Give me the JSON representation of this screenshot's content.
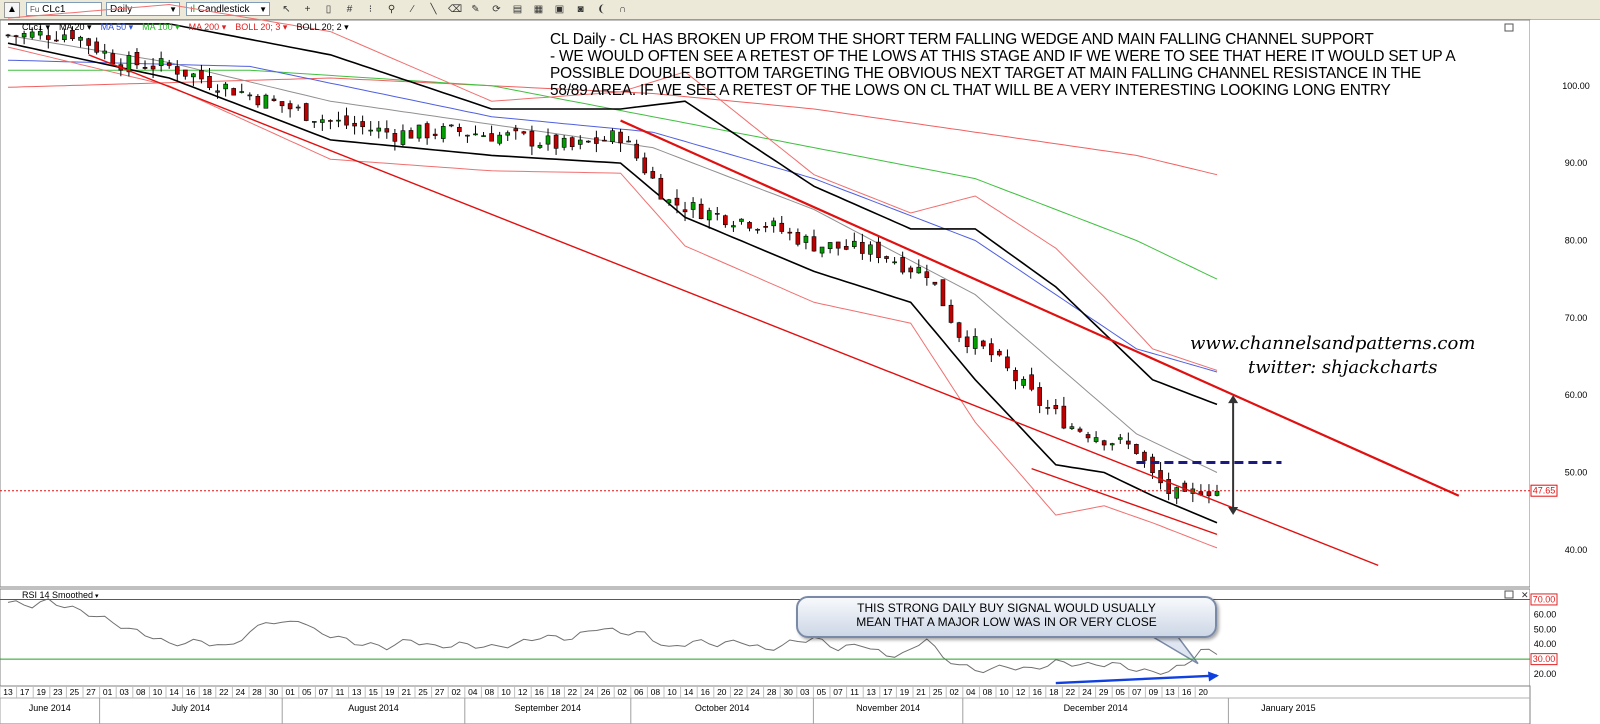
{
  "toolbar": {
    "symbol": "CLc1",
    "symbol_badge": "Fu",
    "interval": "Daily",
    "chart_type": "Candlestick",
    "icons": [
      "cursor-icon",
      "crosshair-icon",
      "data-window-icon",
      "grid-icon",
      "one-to-one-icon",
      "zoom-icon",
      "fibonacci-icon",
      "trendline-icon",
      "eraser-icon",
      "paint-icon",
      "refresh-icon",
      "layout-icon",
      "template-icon",
      "camera-icon",
      "highlight-icon",
      "wave-icon",
      "magnet-icon"
    ]
  },
  "legend": {
    "main": [
      {
        "label": "CLc1",
        "color": "#000000"
      },
      {
        "label": "MA 20",
        "color": "#000000"
      },
      {
        "label": "MA 50",
        "color": "#3050e0"
      },
      {
        "label": "MA 100",
        "color": "#22b822"
      },
      {
        "label": "MA 200",
        "color": "#e02020"
      },
      {
        "label": "BOLL 20; 3",
        "color": "#e02020"
      },
      {
        "label": "BOLL 20; 2",
        "color": "#000000"
      }
    ],
    "rsi": "RSI 14 Smoothed"
  },
  "annotation": {
    "lines": [
      "CL Daily - CL HAS BROKEN UP FROM THE SHORT TERM FALLING WEDGE AND MAIN FALLING CHANNEL SUPPORT",
      "- WE WOULD OFTEN SEE A RETEST OF THE LOWS AT THIS STAGE AND IF WE WERE TO SEE THAT HERE IT WOULD SET UP A",
      "POSSIBLE DOUBLE BOTTOM TARGETING THE OBVIOUS NEXT TARGET AT MAIN FALLING CHANNEL RESISTANCE IN THE",
      "58/89 AREA. IF WE SEE A RETEST OF THE LOWS ON CL THAT WILL BE A VERY INTERESTING LOOKING LONG ENTRY"
    ],
    "website": "www.channelsandpatterns.com",
    "twitter": "twitter: shjackcharts",
    "callout_lines": [
      "THIS STRONG DAILY BUY SIGNAL WOULD USUALLY",
      "MEAN THAT A MAJOR LOW WAS IN OR VERY CLOSE"
    ]
  },
  "chart_data": {
    "type": "candlestick",
    "title": "CL Daily",
    "price_axis": {
      "ticks": [
        40,
        50,
        60,
        70,
        80,
        90,
        100
      ],
      "labels": [
        "40.00",
        "50.00",
        "60.00",
        "70.00",
        "80.00",
        "90.00",
        "100.00"
      ],
      "ylim": [
        35.2,
        108.5
      ],
      "last_price": 47.65,
      "last_price_label": "47.65"
    },
    "rsi_axis": {
      "ticks": [
        20,
        30,
        40,
        50,
        60,
        70
      ],
      "labels": [
        "20.00",
        "30.00",
        "40.00",
        "50.00",
        "60.00",
        "70.00"
      ],
      "overbought": 70,
      "oversold": 30,
      "overbought_label": "70.00",
      "oversold_label": "30.00",
      "ylim": [
        12,
        77
      ]
    },
    "x_axis": {
      "day_labels": [
        "13",
        "17",
        "19",
        "23",
        "25",
        "27",
        "01",
        "03",
        "08",
        "10",
        "14",
        "16",
        "18",
        "22",
        "24",
        "28",
        "30",
        "01",
        "05",
        "07",
        "11",
        "13",
        "15",
        "19",
        "21",
        "25",
        "27",
        "02",
        "04",
        "08",
        "10",
        "12",
        "16",
        "18",
        "22",
        "24",
        "26",
        "02",
        "06",
        "08",
        "10",
        "14",
        "16",
        "20",
        "22",
        "24",
        "28",
        "30",
        "03",
        "05",
        "07",
        "11",
        "13",
        "17",
        "19",
        "21",
        "25",
        "02",
        "04",
        "08",
        "10",
        "12",
        "16",
        "18",
        "22",
        "24",
        "29",
        "05",
        "07",
        "09",
        "13",
        "16",
        "20"
      ],
      "month_labels": [
        "June 2014",
        "July 2014",
        "August 2014",
        "September 2014",
        "October 2014",
        "November 2014",
        "December 2014",
        "January 2015"
      ],
      "month_start_index": [
        0,
        6,
        17,
        28,
        38,
        49,
        58,
        74
      ],
      "total_bars": 150,
      "grid": true
    },
    "candles_anchor_close": [
      [
        0,
        106.5
      ],
      [
        8,
        106.8
      ],
      [
        14,
        103.0
      ],
      [
        20,
        102.5
      ],
      [
        26,
        100.2
      ],
      [
        33,
        97.8
      ],
      [
        40,
        95.4
      ],
      [
        48,
        93.8
      ],
      [
        56,
        94.1
      ],
      [
        64,
        93.2
      ],
      [
        70,
        92.0
      ],
      [
        76,
        93.6
      ],
      [
        82,
        85.0
      ],
      [
        88,
        83.3
      ],
      [
        94,
        82.1
      ],
      [
        100,
        79.5
      ],
      [
        108,
        78.5
      ],
      [
        112,
        76.5
      ],
      [
        114,
        76.0
      ],
      [
        118,
        68.0
      ],
      [
        122,
        65.2
      ],
      [
        128,
        59.0
      ],
      [
        132,
        56.0
      ],
      [
        136,
        54.5
      ],
      [
        140,
        53.0
      ],
      [
        142,
        49.5
      ],
      [
        144,
        47.5
      ],
      [
        146,
        46.5
      ],
      [
        148,
        48.0
      ],
      [
        150,
        47.65
      ]
    ],
    "moving_averages": {
      "ma20": [
        [
          0,
          106.5
        ],
        [
          20,
          103
        ],
        [
          40,
          98
        ],
        [
          60,
          95
        ],
        [
          80,
          92
        ],
        [
          100,
          84
        ],
        [
          120,
          73
        ],
        [
          130,
          64
        ],
        [
          140,
          55
        ],
        [
          150,
          50
        ]
      ],
      "ma50": [
        [
          0,
          103.3
        ],
        [
          30,
          102.5
        ],
        [
          60,
          96
        ],
        [
          80,
          94
        ],
        [
          100,
          88
        ],
        [
          120,
          80
        ],
        [
          140,
          66
        ],
        [
          150,
          63
        ]
      ],
      "ma100": [
        [
          0,
          102
        ],
        [
          30,
          102
        ],
        [
          60,
          100
        ],
        [
          80,
          96
        ],
        [
          100,
          92
        ],
        [
          120,
          88
        ],
        [
          140,
          80
        ],
        [
          150,
          75
        ]
      ],
      "ma200": [
        [
          0,
          99.8
        ],
        [
          40,
          101
        ],
        [
          80,
          99
        ],
        [
          100,
          97
        ],
        [
          120,
          94
        ],
        [
          140,
          91
        ],
        [
          150,
          88.5
        ]
      ]
    },
    "bollinger_20_2": {
      "upper": [
        [
          0,
          108
        ],
        [
          20,
          108
        ],
        [
          40,
          104
        ],
        [
          60,
          97
        ],
        [
          76,
          97
        ],
        [
          84,
          98
        ],
        [
          100,
          87
        ],
        [
          112,
          81.5
        ],
        [
          120,
          81.5
        ],
        [
          130,
          74
        ],
        [
          136,
          68
        ],
        [
          142,
          62
        ],
        [
          150,
          58.8
        ]
      ],
      "lower": [
        [
          0,
          105.5
        ],
        [
          20,
          101
        ],
        [
          40,
          93
        ],
        [
          60,
          91
        ],
        [
          76,
          90
        ],
        [
          84,
          83
        ],
        [
          100,
          76
        ],
        [
          112,
          72
        ],
        [
          120,
          62
        ],
        [
          130,
          51
        ],
        [
          136,
          50
        ],
        [
          142,
          47
        ],
        [
          150,
          43.5
        ]
      ]
    },
    "trendlines": [
      {
        "name": "main-falling-channel-resistance",
        "points": [
          [
            76,
            95.5
          ],
          [
            180,
            47
          ]
        ]
      },
      {
        "name": "main-falling-channel-support",
        "points": [
          [
            10,
            104
          ],
          [
            170,
            38
          ]
        ]
      },
      {
        "name": "falling-wedge-support",
        "points": [
          [
            127,
            50.5
          ],
          [
            150,
            42
          ]
        ]
      }
    ],
    "double_bottom_neckline": 51.3,
    "projection_arrow": {
      "from": 44.5,
      "to": 60,
      "bar": 152
    },
    "rsi_values": [
      [
        0,
        68
      ],
      [
        3,
        66
      ],
      [
        5,
        69
      ],
      [
        8,
        64
      ],
      [
        12,
        57
      ],
      [
        15,
        50
      ],
      [
        18,
        45
      ],
      [
        20,
        40
      ],
      [
        24,
        42
      ],
      [
        27,
        38
      ],
      [
        30,
        47
      ],
      [
        32,
        56
      ],
      [
        34,
        53
      ],
      [
        36,
        57
      ],
      [
        38,
        49
      ],
      [
        40,
        46
      ],
      [
        43,
        41
      ],
      [
        47,
        38
      ],
      [
        50,
        43
      ],
      [
        53,
        38
      ],
      [
        56,
        40
      ],
      [
        60,
        38
      ],
      [
        63,
        40
      ],
      [
        66,
        45
      ],
      [
        70,
        44
      ],
      [
        73,
        51
      ],
      [
        76,
        48
      ],
      [
        79,
        47
      ],
      [
        82,
        37
      ],
      [
        85,
        42
      ],
      [
        88,
        40
      ],
      [
        91,
        42
      ],
      [
        94,
        36
      ],
      [
        97,
        41
      ],
      [
        100,
        44
      ],
      [
        103,
        37
      ],
      [
        106,
        40
      ],
      [
        109,
        32
      ],
      [
        112,
        35
      ],
      [
        114,
        45
      ],
      [
        116,
        30
      ],
      [
        118,
        27
      ],
      [
        120,
        22
      ],
      [
        124,
        25
      ],
      [
        127,
        23
      ],
      [
        130,
        28
      ],
      [
        134,
        26
      ],
      [
        137,
        27
      ],
      [
        140,
        23
      ],
      [
        142,
        21
      ],
      [
        144,
        22
      ],
      [
        146,
        26
      ],
      [
        148,
        36
      ],
      [
        150,
        34
      ]
    ]
  }
}
